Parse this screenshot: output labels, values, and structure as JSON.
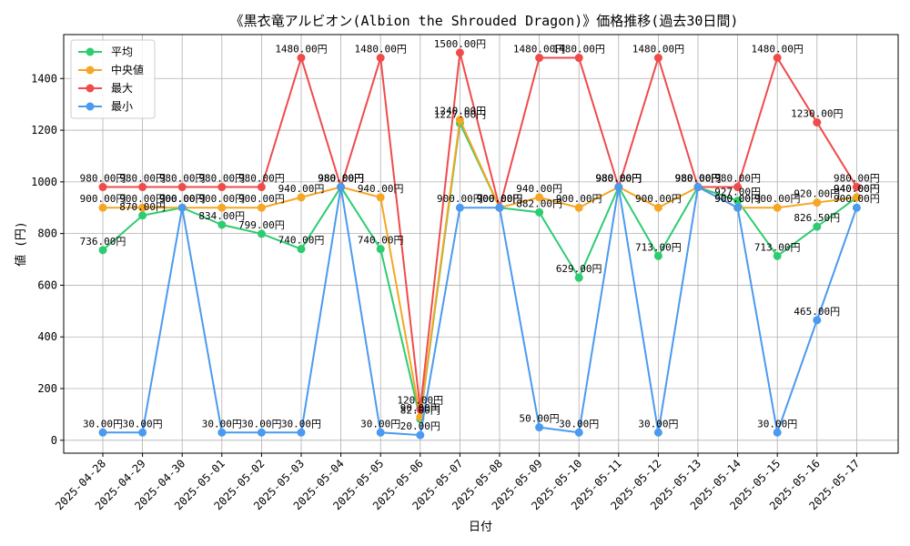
{
  "chart_data": {
    "type": "line",
    "title": "《黒衣竜アルビオン(Albion the Shrouded Dragon)》価格推移(過去30日間)",
    "xlabel": "日付",
    "ylabel": "値 (円)",
    "ylim": [
      -50,
      1570
    ],
    "yticks": [
      0,
      200,
      400,
      600,
      800,
      1000,
      1200,
      1400
    ],
    "grid": true,
    "legend_position": "top-left",
    "categories": [
      "2025-04-28",
      "2025-04-29",
      "2025-04-30",
      "2025-05-01",
      "2025-05-02",
      "2025-05-03",
      "2025-05-04",
      "2025-05-05",
      "2025-05-06",
      "2025-05-07",
      "2025-05-08",
      "2025-05-09",
      "2025-05-10",
      "2025-05-11",
      "2025-05-12",
      "2025-05-13",
      "2025-05-14",
      "2025-05-15",
      "2025-05-16",
      "2025-05-17"
    ],
    "series": [
      {
        "name": "平均",
        "color": "#2ecc71",
        "values": [
          736,
          870,
          900,
          834,
          799,
          740,
          980,
          740,
          82,
          1227,
          900,
          882,
          629,
          980,
          713,
          980,
          927,
          713,
          826.5,
          940
        ],
        "labels": [
          "736.00円",
          "870.00円",
          "900.00円",
          "834.00円",
          "799.00円",
          "740.00円",
          "980.00円",
          "740.00円",
          "82.00円",
          "1227.00円",
          "900.00円",
          "882.00円",
          "629.00円",
          "980.00円",
          "713.00円",
          "980.00円",
          "927.00円",
          "713.00円",
          "826.50円",
          "940.00円"
        ]
      },
      {
        "name": "中央値",
        "color": "#f5a623",
        "values": [
          900,
          900,
          900,
          900,
          900,
          940,
          980,
          940,
          90,
          1240,
          900,
          940,
          900,
          980,
          900,
          980,
          900,
          900,
          920,
          940
        ],
        "labels": [
          "900.00円",
          "900.00円",
          "900.00円",
          "900.00円",
          "900.00円",
          "940.00円",
          "980.00円",
          "940.00円",
          "90.00円",
          "1240.00円",
          "900.00円",
          "940.00円",
          "900.00円",
          "980.00円",
          "900.00円",
          "980.00円",
          "900.00円",
          "900.00円",
          "920.00円",
          "940.00円"
        ]
      },
      {
        "name": "最大",
        "color": "#ef4b4b",
        "values": [
          980,
          980,
          980,
          980,
          980,
          1480,
          980,
          1480,
          120,
          1500,
          900,
          1480,
          1480,
          980,
          1480,
          980,
          980,
          1480,
          1230,
          980
        ],
        "labels": [
          "980.00円",
          "980.00円",
          "980.00円",
          "980.00円",
          "980.00円",
          "1480.00円",
          "980.00円",
          "1480.00円",
          "120.00円",
          "1500.00円",
          "900.00円",
          "1480.00円",
          "1480.00円",
          "980.00円",
          "1480.00円",
          "980.00円",
          "980.00円",
          "1480.00円",
          "1230.00円",
          "980.00円"
        ]
      },
      {
        "name": "最小",
        "color": "#4a9aef",
        "values": [
          30,
          30,
          900,
          30,
          30,
          30,
          980,
          30,
          20,
          900,
          900,
          50,
          30,
          980,
          30,
          980,
          900,
          30,
          465,
          900
        ],
        "labels": [
          "30.00円",
          "30.00円",
          "900.00円",
          "30.00円",
          "30.00円",
          "30.00円",
          "980.00円",
          "30.00円",
          "20.00円",
          "900.00円",
          "900.00円",
          "50.00円",
          "30.00円",
          "980.00円",
          "30.00円",
          "980.00円",
          "900.00円",
          "30.00円",
          "465.00円",
          "900.00円"
        ]
      }
    ]
  }
}
